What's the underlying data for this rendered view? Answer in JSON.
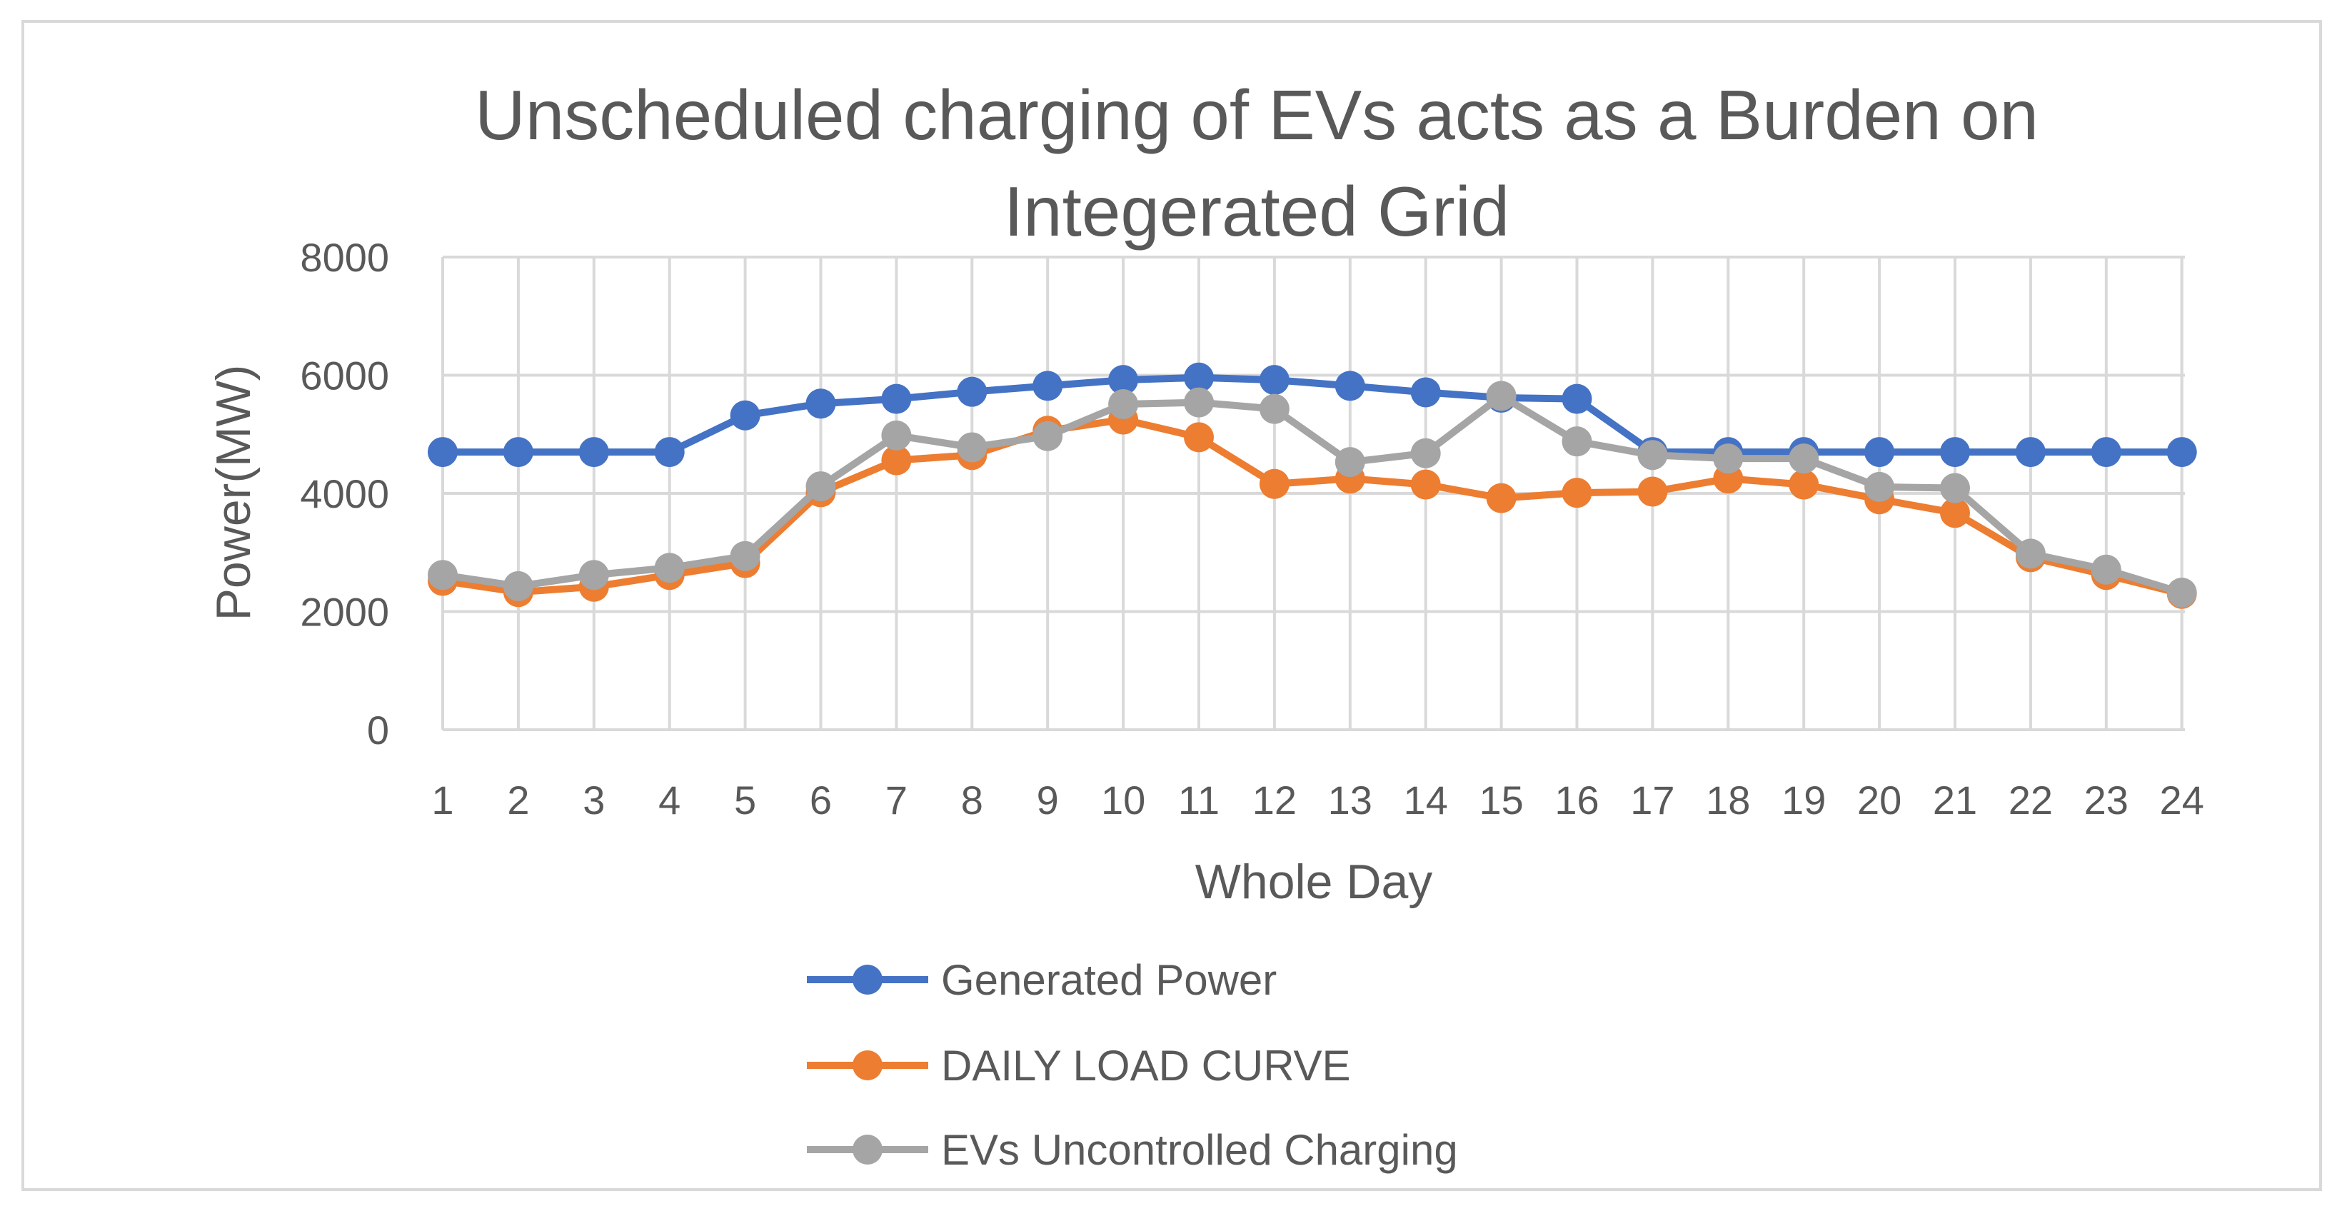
{
  "chart_data": {
    "type": "line",
    "title_lines": [
      "Unscheduled charging of EVs acts as a Burden on",
      "Integerated Grid"
    ],
    "xlabel": "Whole Day",
    "ylabel": "Power(MW)",
    "ylim": [
      0,
      8000
    ],
    "yticks": [
      0,
      2000,
      4000,
      6000,
      8000
    ],
    "grid": true,
    "legend_position": "bottom",
    "x": [
      1,
      2,
      3,
      4,
      5,
      6,
      7,
      8,
      9,
      10,
      11,
      12,
      13,
      14,
      15,
      16,
      17,
      18,
      19,
      20,
      21,
      22,
      23,
      24
    ],
    "series": [
      {
        "name": "Generated Power",
        "color": "#4472c4",
        "values": [
          4700,
          4700,
          4700,
          4700,
          5320,
          5520,
          5600,
          5720,
          5820,
          5920,
          5960,
          5920,
          5820,
          5710,
          5620,
          5600,
          4700,
          4700,
          4700,
          4700,
          4700,
          4700,
          4700,
          4700
        ]
      },
      {
        "name": "DAILY LOAD CURVE",
        "color": "#ed7d31",
        "values": [
          2520,
          2330,
          2420,
          2620,
          2820,
          4020,
          4560,
          4650,
          5060,
          5250,
          4950,
          4160,
          4250,
          4150,
          3920,
          4010,
          4030,
          4250,
          4150,
          3900,
          3670,
          2920,
          2620,
          2300
        ]
      },
      {
        "name": "EVs Uncontrolled Charging",
        "color": "#a5a5a5",
        "values": [
          2620,
          2430,
          2620,
          2740,
          2940,
          4120,
          4980,
          4780,
          4970,
          5510,
          5540,
          5430,
          4530,
          4680,
          5650,
          4880,
          4650,
          4590,
          4590,
          4110,
          4090,
          2980,
          2710,
          2320
        ]
      }
    ]
  }
}
